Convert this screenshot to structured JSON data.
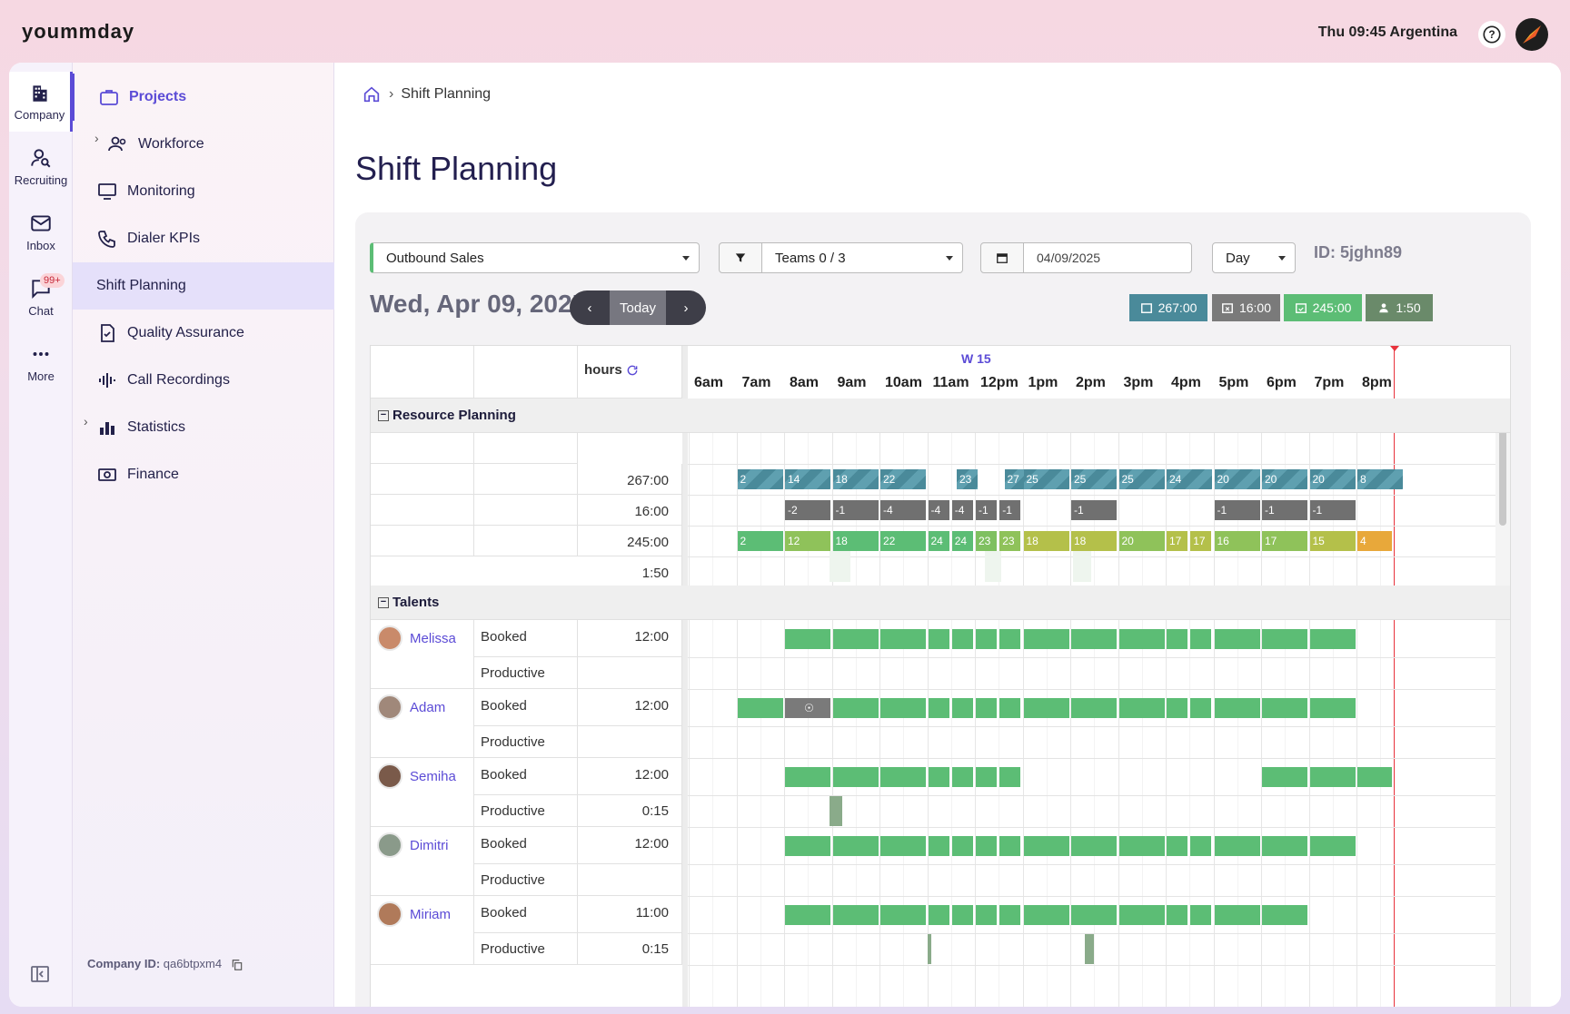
{
  "app": {
    "logo": "yoummday",
    "clock": "Thu 09:45 Argentina"
  },
  "rail": [
    {
      "label": "Company",
      "icon": "building-icon"
    },
    {
      "label": "Recruiting",
      "icon": "person-search-icon"
    },
    {
      "label": "Inbox",
      "icon": "mail-icon"
    },
    {
      "label": "Chat",
      "icon": "chat-icon",
      "badge": "99+"
    },
    {
      "label": "More",
      "icon": "more-dots-icon"
    }
  ],
  "nav": {
    "items": [
      "Projects",
      "Workforce",
      "Monitoring",
      "Dialer KPIs",
      "Shift Planning",
      "Quality Assurance",
      "Call Recordings",
      "Statistics",
      "Finance"
    ],
    "company_id_label": "Company ID:",
    "company_id": "qa6btpxm4"
  },
  "breadcrumb": {
    "current": "Shift Planning"
  },
  "page": {
    "title": "Shift Planning"
  },
  "toolbar": {
    "project": "Outbound Sales",
    "teams": "Teams 0 / 3",
    "date": "04/09/2025",
    "view": "Day",
    "id": "ID: 5jghn89"
  },
  "dateheader": {
    "date": "Wed, Apr 09, 2025",
    "today": "Today",
    "prev": "‹",
    "next": "›"
  },
  "summary": {
    "booked": "267:00",
    "missing": "16:00",
    "covered": "245:00",
    "people": "1:50",
    "colors": {
      "booked": "#4a8a9a",
      "missing": "#7a7a7a",
      "covered": "#5cbd75",
      "people": "#6a8a6a"
    }
  },
  "schedule": {
    "week": "W 15",
    "hours_header": "hours",
    "hours": [
      "6am",
      "7am",
      "8am",
      "9am",
      "10am",
      "11am",
      "12pm",
      "1pm",
      "2pm",
      "3pm",
      "4pm",
      "5pm",
      "6pm",
      "7pm",
      "8pm"
    ],
    "sections": {
      "resource": "Resource Planning",
      "talents": "Talents"
    },
    "resource_totals": [
      "267:00",
      "16:00",
      "245:00",
      "1:50"
    ],
    "demand": [
      "2",
      "14",
      "18",
      "22",
      "23",
      "27",
      "25",
      "25",
      "25",
      "24",
      "20",
      "20",
      "20",
      "8"
    ],
    "gap": [
      "-2",
      "-1",
      "-4",
      "-4",
      "-4",
      "-1",
      "-1",
      "-1",
      "-1",
      "-1",
      "-1"
    ],
    "coverage": [
      "2",
      "12",
      "18",
      "22",
      "24",
      "24",
      "23",
      "23",
      "18",
      "18",
      "20",
      "17",
      "17",
      "16",
      "17",
      "15",
      "4"
    ],
    "talents": [
      {
        "name": "Melissa",
        "booked_label": "Booked",
        "booked": "12:00",
        "productive_label": "Productive",
        "productive": ""
      },
      {
        "name": "Adam",
        "booked_label": "Booked",
        "booked": "12:00",
        "productive_label": "Productive",
        "productive": ""
      },
      {
        "name": "Semiha",
        "booked_label": "Booked",
        "booked": "12:00",
        "productive_label": "Productive",
        "productive": "0:15"
      },
      {
        "name": "Dimitri",
        "booked_label": "Booked",
        "booked": "12:00",
        "productive_label": "Productive",
        "productive": ""
      },
      {
        "name": "Miriam",
        "booked_label": "Booked",
        "booked": "11:00",
        "productive_label": "Productive",
        "productive": "0:15"
      }
    ]
  }
}
